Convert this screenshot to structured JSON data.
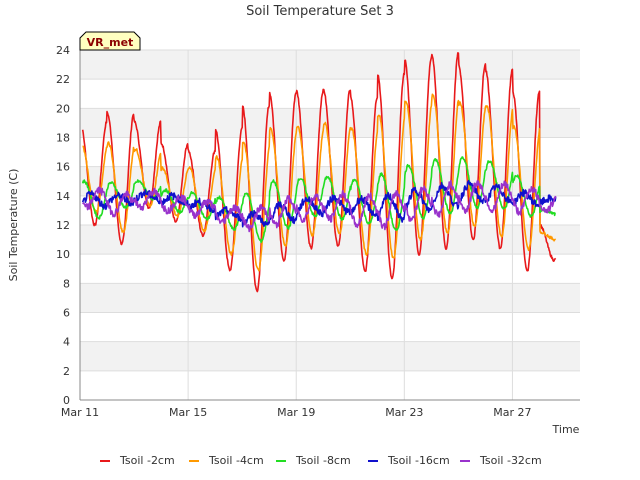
{
  "chart_data": {
    "type": "line",
    "title": "Soil Temperature Set 3",
    "xlabel": "Time",
    "ylabel": "Soil Temperature (C)",
    "badge": "VR_met",
    "x_unit": "days since Mar 11",
    "xlim": [
      0,
      18.5
    ],
    "ylim": [
      0,
      24
    ],
    "yticks": [
      0,
      2,
      4,
      6,
      8,
      10,
      12,
      14,
      16,
      18,
      20,
      22,
      24
    ],
    "xticks": [
      {
        "x": 0,
        "label": "Mar 11"
      },
      {
        "x": 4,
        "label": "Mar 15"
      },
      {
        "x": 8,
        "label": "Mar 19"
      },
      {
        "x": 12,
        "label": "Mar 23"
      },
      {
        "x": 16,
        "label": "Mar 27"
      }
    ],
    "grid": true,
    "banded_background": true,
    "legend_position": "bottom",
    "days": [
      0,
      1,
      2,
      3,
      4,
      5,
      6,
      7,
      8,
      9,
      10,
      11,
      12,
      13,
      14,
      15,
      16,
      17
    ],
    "series": [
      {
        "name": "Tsoil -2cm",
        "color": "#e8191b",
        "min": [
          12.0,
          10.7,
          13.2,
          12.2,
          11.3,
          8.9,
          7.5,
          9.6,
          10.4,
          10.6,
          8.8,
          8.3,
          10.0,
          10.4,
          11.0,
          10.4,
          8.8,
          9.6
        ],
        "max": [
          19.1,
          19.7,
          19.1,
          17.6,
          17.1,
          18.6,
          20.2,
          21.1,
          21.2,
          21.3,
          20.8,
          22.4,
          23.4,
          23.8,
          23.0,
          22.6,
          21.2,
          12.0
        ],
        "phase": 0.55
      },
      {
        "name": "Tsoil -4cm",
        "color": "#ff9900",
        "min": [
          12.9,
          11.5,
          13.3,
          12.6,
          11.6,
          10.0,
          8.9,
          10.6,
          11.3,
          11.4,
          10.0,
          9.7,
          11.0,
          11.4,
          11.9,
          11.2,
          10.3,
          11.0
        ],
        "max": [
          17.5,
          17.6,
          17.2,
          15.9,
          15.9,
          16.7,
          17.7,
          18.6,
          18.8,
          19.0,
          18.6,
          19.6,
          20.5,
          20.9,
          20.4,
          20.2,
          18.8,
          11.5
        ],
        "phase": 0.6
      },
      {
        "name": "Tsoil -8cm",
        "color": "#22dd22",
        "min": [
          12.5,
          13.2,
          13.8,
          12.9,
          12.4,
          11.7,
          10.9,
          11.8,
          12.6,
          12.4,
          12.1,
          11.6,
          12.5,
          12.8,
          13.2,
          13.1,
          12.6,
          12.7
        ],
        "max": [
          15.0,
          14.9,
          15.0,
          14.4,
          14.2,
          13.9,
          14.2,
          15.0,
          15.2,
          15.3,
          15.1,
          15.5,
          16.1,
          16.5,
          16.6,
          16.4,
          15.4,
          13.0
        ],
        "phase": 0.7
      },
      {
        "name": "Tsoil -16cm",
        "color": "#1010cc",
        "min": [
          13.3,
          13.5,
          13.7,
          13.5,
          13.1,
          12.5,
          12.0,
          12.3,
          12.8,
          12.9,
          12.7,
          12.4,
          13.0,
          13.3,
          13.6,
          13.6,
          13.4,
          13.5
        ],
        "max": [
          14.1,
          14.0,
          14.2,
          14.0,
          13.6,
          13.0,
          12.8,
          13.4,
          13.8,
          13.9,
          13.8,
          14.0,
          14.4,
          14.7,
          14.8,
          14.6,
          14.2,
          13.8
        ],
        "phase": 0.95
      },
      {
        "name": "Tsoil -32cm",
        "color": "#9933cc",
        "min": [
          13.2,
          12.8,
          13.2,
          13.0,
          12.7,
          12.2,
          11.8,
          12.0,
          12.4,
          12.4,
          12.0,
          11.9,
          12.4,
          12.7,
          13.0,
          13.0,
          12.9,
          13.0
        ],
        "max": [
          14.4,
          14.1,
          14.3,
          13.9,
          13.6,
          13.2,
          13.2,
          13.8,
          14.0,
          14.1,
          14.0,
          14.2,
          14.5,
          14.8,
          14.9,
          14.8,
          14.5,
          13.9
        ],
        "phase": 1.25
      }
    ]
  }
}
